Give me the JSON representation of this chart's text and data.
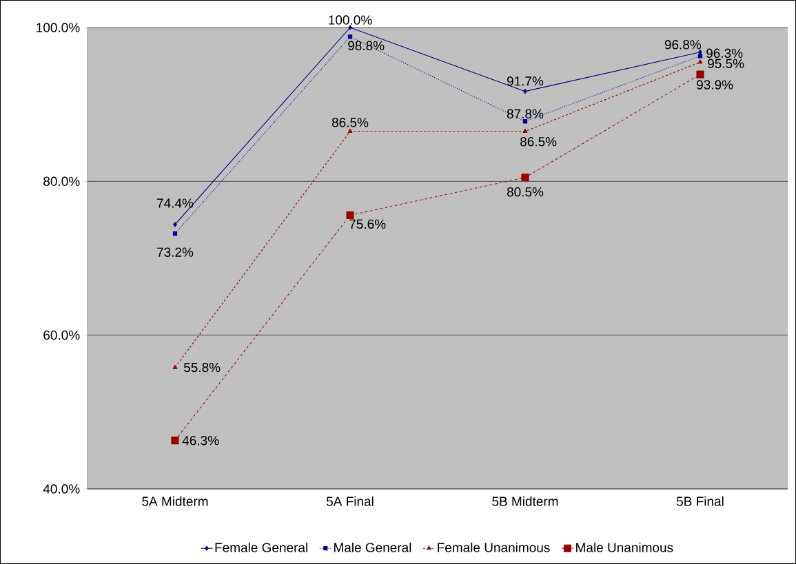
{
  "chart_data": {
    "type": "line",
    "categories": [
      "5A Midterm",
      "5A Final",
      "5B Midterm",
      "5B Final"
    ],
    "series": [
      {
        "name": "Female General",
        "color": "#000080",
        "marker": "diamond",
        "line_style": "solid",
        "values": [
          74.4,
          100.0,
          91.7,
          96.8
        ],
        "value_labels": [
          "74.4%",
          "100.0%",
          "91.7%",
          "96.8%"
        ]
      },
      {
        "name": "Male General",
        "color": "#0000a0",
        "marker": "square",
        "line_style": "dotted",
        "values": [
          73.2,
          98.8,
          87.8,
          96.3
        ],
        "value_labels": [
          "73.2%",
          "98.8%",
          "87.8%",
          "96.3%"
        ]
      },
      {
        "name": "Female Unanimous",
        "color": "#990000",
        "marker": "triangle",
        "line_style": "dashed",
        "values": [
          55.8,
          86.5,
          86.5,
          95.5
        ],
        "value_labels": [
          "55.8%",
          "86.5%",
          "86.5%",
          "95.5%"
        ]
      },
      {
        "name": "Male Unanimous",
        "color": "#990000",
        "marker": "square",
        "line_style": "dashdot",
        "values": [
          46.3,
          75.6,
          80.5,
          93.9
        ],
        "value_labels": [
          "46.3%",
          "75.6%",
          "80.5%",
          "93.9%"
        ]
      }
    ],
    "ylim": [
      40,
      100
    ],
    "yticks": [
      {
        "value": 40,
        "label": "40.0%"
      },
      {
        "value": 60,
        "label": "60.0%"
      },
      {
        "value": 80,
        "label": "80.0%"
      },
      {
        "value": 100,
        "label": "100.0%"
      }
    ],
    "grid": "y",
    "legend": "bottom"
  }
}
